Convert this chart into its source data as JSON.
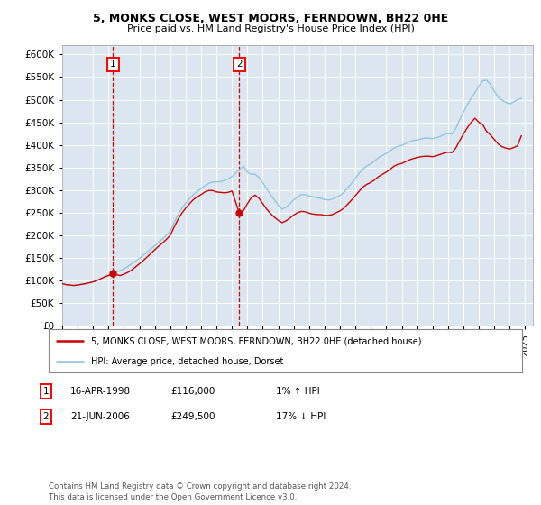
{
  "title_line1": "5, MONKS CLOSE, WEST MOORS, FERNDOWN, BH22 0HE",
  "title_line2": "Price paid vs. HM Land Registry's House Price Index (HPI)",
  "background_color": "#ffffff",
  "plot_bg_color": "#dce6f1",
  "grid_color": "#ffffff",
  "sale1_date": 1998.29,
  "sale1_price": 116000,
  "sale2_date": 2006.47,
  "sale2_price": 249500,
  "legend_entry1": "5, MONKS CLOSE, WEST MOORS, FERNDOWN, BH22 0HE (detached house)",
  "legend_entry2": "HPI: Average price, detached house, Dorset",
  "footer": "Contains HM Land Registry data © Crown copyright and database right 2024.\nThis data is licensed under the Open Government Licence v3.0.",
  "ylim": [
    0,
    620000
  ],
  "yticks": [
    0,
    50000,
    100000,
    150000,
    200000,
    250000,
    300000,
    350000,
    400000,
    450000,
    500000,
    550000,
    600000
  ],
  "hpi_color": "#92c5de",
  "price_paid_color": "#cc0000",
  "hpi_data": [
    [
      1995.0,
      93000
    ],
    [
      1995.25,
      91000
    ],
    [
      1995.5,
      90000
    ],
    [
      1995.75,
      89000
    ],
    [
      1996.0,
      90000
    ],
    [
      1996.25,
      91500
    ],
    [
      1996.5,
      93000
    ],
    [
      1996.75,
      95000
    ],
    [
      1997.0,
      97000
    ],
    [
      1997.25,
      100000
    ],
    [
      1997.5,
      104000
    ],
    [
      1997.75,
      108000
    ],
    [
      1998.0,
      111000
    ],
    [
      1998.25,
      115000
    ],
    [
      1998.5,
      118000
    ],
    [
      1998.75,
      122000
    ],
    [
      1999.0,
      126000
    ],
    [
      1999.25,
      131000
    ],
    [
      1999.5,
      137000
    ],
    [
      1999.75,
      143000
    ],
    [
      2000.0,
      149000
    ],
    [
      2000.25,
      156000
    ],
    [
      2000.5,
      163000
    ],
    [
      2000.75,
      170000
    ],
    [
      2001.0,
      177000
    ],
    [
      2001.25,
      185000
    ],
    [
      2001.5,
      192000
    ],
    [
      2001.75,
      200000
    ],
    [
      2002.0,
      210000
    ],
    [
      2002.25,
      228000
    ],
    [
      2002.5,
      245000
    ],
    [
      2002.75,
      260000
    ],
    [
      2003.0,
      271000
    ],
    [
      2003.25,
      281000
    ],
    [
      2003.5,
      290000
    ],
    [
      2003.75,
      297000
    ],
    [
      2004.0,
      303000
    ],
    [
      2004.25,
      310000
    ],
    [
      2004.5,
      315000
    ],
    [
      2004.75,
      318000
    ],
    [
      2005.0,
      318000
    ],
    [
      2005.25,
      319000
    ],
    [
      2005.5,
      321000
    ],
    [
      2005.75,
      325000
    ],
    [
      2006.0,
      330000
    ],
    [
      2006.25,
      338000
    ],
    [
      2006.5,
      346000
    ],
    [
      2006.75,
      353000
    ],
    [
      2007.0,
      340000
    ],
    [
      2007.25,
      335000
    ],
    [
      2007.5,
      335000
    ],
    [
      2007.75,
      328000
    ],
    [
      2008.0,
      316000
    ],
    [
      2008.25,
      303000
    ],
    [
      2008.5,
      290000
    ],
    [
      2008.75,
      278000
    ],
    [
      2009.0,
      267000
    ],
    [
      2009.25,
      258000
    ],
    [
      2009.5,
      262000
    ],
    [
      2009.75,
      270000
    ],
    [
      2010.0,
      278000
    ],
    [
      2010.25,
      285000
    ],
    [
      2010.5,
      290000
    ],
    [
      2010.75,
      290000
    ],
    [
      2011.0,
      287000
    ],
    [
      2011.25,
      285000
    ],
    [
      2011.5,
      283000
    ],
    [
      2011.75,
      282000
    ],
    [
      2012.0,
      279000
    ],
    [
      2012.25,
      278000
    ],
    [
      2012.5,
      280000
    ],
    [
      2012.75,
      284000
    ],
    [
      2013.0,
      288000
    ],
    [
      2013.25,
      295000
    ],
    [
      2013.5,
      305000
    ],
    [
      2013.75,
      315000
    ],
    [
      2014.0,
      326000
    ],
    [
      2014.25,
      338000
    ],
    [
      2014.5,
      347000
    ],
    [
      2014.75,
      354000
    ],
    [
      2015.0,
      358000
    ],
    [
      2015.25,
      365000
    ],
    [
      2015.5,
      372000
    ],
    [
      2015.75,
      377000
    ],
    [
      2016.0,
      381000
    ],
    [
      2016.25,
      387000
    ],
    [
      2016.5,
      393000
    ],
    [
      2016.75,
      397000
    ],
    [
      2017.0,
      399000
    ],
    [
      2017.25,
      403000
    ],
    [
      2017.5,
      407000
    ],
    [
      2017.75,
      410000
    ],
    [
      2018.0,
      411000
    ],
    [
      2018.25,
      413000
    ],
    [
      2018.5,
      415000
    ],
    [
      2018.75,
      415000
    ],
    [
      2019.0,
      414000
    ],
    [
      2019.25,
      416000
    ],
    [
      2019.5,
      419000
    ],
    [
      2019.75,
      423000
    ],
    [
      2020.0,
      425000
    ],
    [
      2020.25,
      424000
    ],
    [
      2020.5,
      436000
    ],
    [
      2020.75,
      455000
    ],
    [
      2021.0,
      472000
    ],
    [
      2021.25,
      489000
    ],
    [
      2021.5,
      503000
    ],
    [
      2021.75,
      516000
    ],
    [
      2022.0,
      530000
    ],
    [
      2022.25,
      542000
    ],
    [
      2022.5,
      543000
    ],
    [
      2022.75,
      534000
    ],
    [
      2023.0,
      519000
    ],
    [
      2023.25,
      506000
    ],
    [
      2023.5,
      499000
    ],
    [
      2023.75,
      494000
    ],
    [
      2024.0,
      491000
    ],
    [
      2024.25,
      495000
    ],
    [
      2024.5,
      500000
    ],
    [
      2024.75,
      503000
    ]
  ],
  "price_paid_data": [
    [
      1995.0,
      93000
    ],
    [
      1995.25,
      91000
    ],
    [
      1995.5,
      90000
    ],
    [
      1995.75,
      89000
    ],
    [
      1996.0,
      90000
    ],
    [
      1996.25,
      91500
    ],
    [
      1996.5,
      93000
    ],
    [
      1996.75,
      95000
    ],
    [
      1997.0,
      97000
    ],
    [
      1997.25,
      100000
    ],
    [
      1997.5,
      104000
    ],
    [
      1997.75,
      108000
    ],
    [
      1998.0,
      111000
    ],
    [
      1998.29,
      116000
    ],
    [
      1998.5,
      113000
    ],
    [
      1998.75,
      111000
    ],
    [
      1999.0,
      114000
    ],
    [
      1999.25,
      118000
    ],
    [
      1999.5,
      123000
    ],
    [
      1999.75,
      130000
    ],
    [
      2000.0,
      137000
    ],
    [
      2000.25,
      144000
    ],
    [
      2000.5,
      152000
    ],
    [
      2000.75,
      160000
    ],
    [
      2001.0,
      168000
    ],
    [
      2001.25,
      176000
    ],
    [
      2001.5,
      183000
    ],
    [
      2001.75,
      191000
    ],
    [
      2002.0,
      200000
    ],
    [
      2002.25,
      218000
    ],
    [
      2002.5,
      235000
    ],
    [
      2002.75,
      249000
    ],
    [
      2003.0,
      260000
    ],
    [
      2003.25,
      270000
    ],
    [
      2003.5,
      279000
    ],
    [
      2003.75,
      285000
    ],
    [
      2004.0,
      290000
    ],
    [
      2004.25,
      296000
    ],
    [
      2004.5,
      299000
    ],
    [
      2004.75,
      299000
    ],
    [
      2005.0,
      296000
    ],
    [
      2005.25,
      295000
    ],
    [
      2005.5,
      294000
    ],
    [
      2005.75,
      295000
    ],
    [
      2006.0,
      298000
    ],
    [
      2006.47,
      249500
    ],
    [
      2006.75,
      255000
    ],
    [
      2007.0,
      270000
    ],
    [
      2007.25,
      283000
    ],
    [
      2007.5,
      289000
    ],
    [
      2007.75,
      282000
    ],
    [
      2008.0,
      270000
    ],
    [
      2008.25,
      258000
    ],
    [
      2008.5,
      248000
    ],
    [
      2008.75,
      240000
    ],
    [
      2009.0,
      233000
    ],
    [
      2009.25,
      228000
    ],
    [
      2009.5,
      232000
    ],
    [
      2009.75,
      238000
    ],
    [
      2010.0,
      245000
    ],
    [
      2010.25,
      250000
    ],
    [
      2010.5,
      253000
    ],
    [
      2010.75,
      252000
    ],
    [
      2011.0,
      249000
    ],
    [
      2011.25,
      247000
    ],
    [
      2011.5,
      246000
    ],
    [
      2011.75,
      246000
    ],
    [
      2012.0,
      244000
    ],
    [
      2012.25,
      244000
    ],
    [
      2012.5,
      246000
    ],
    [
      2012.75,
      250000
    ],
    [
      2013.0,
      254000
    ],
    [
      2013.25,
      260000
    ],
    [
      2013.5,
      269000
    ],
    [
      2013.75,
      278000
    ],
    [
      2014.0,
      288000
    ],
    [
      2014.25,
      298000
    ],
    [
      2014.5,
      307000
    ],
    [
      2014.75,
      313000
    ],
    [
      2015.0,
      317000
    ],
    [
      2015.25,
      323000
    ],
    [
      2015.5,
      330000
    ],
    [
      2015.75,
      335000
    ],
    [
      2016.0,
      340000
    ],
    [
      2016.25,
      346000
    ],
    [
      2016.5,
      353000
    ],
    [
      2016.75,
      357000
    ],
    [
      2017.0,
      359000
    ],
    [
      2017.25,
      363000
    ],
    [
      2017.5,
      367000
    ],
    [
      2017.75,
      370000
    ],
    [
      2018.0,
      372000
    ],
    [
      2018.25,
      374000
    ],
    [
      2018.5,
      375000
    ],
    [
      2018.75,
      375000
    ],
    [
      2019.0,
      374000
    ],
    [
      2019.25,
      376000
    ],
    [
      2019.5,
      379000
    ],
    [
      2019.75,
      382000
    ],
    [
      2020.0,
      384000
    ],
    [
      2020.25,
      383000
    ],
    [
      2020.5,
      393000
    ],
    [
      2020.75,
      409000
    ],
    [
      2021.0,
      424000
    ],
    [
      2021.25,
      438000
    ],
    [
      2021.5,
      450000
    ],
    [
      2021.75,
      459000
    ],
    [
      2022.0,
      450000
    ],
    [
      2022.25,
      445000
    ],
    [
      2022.5,
      430000
    ],
    [
      2022.75,
      422000
    ],
    [
      2023.0,
      412000
    ],
    [
      2023.25,
      402000
    ],
    [
      2023.5,
      396000
    ],
    [
      2023.75,
      393000
    ],
    [
      2024.0,
      391000
    ],
    [
      2024.25,
      394000
    ],
    [
      2024.5,
      398000
    ],
    [
      2024.75,
      420000
    ]
  ]
}
